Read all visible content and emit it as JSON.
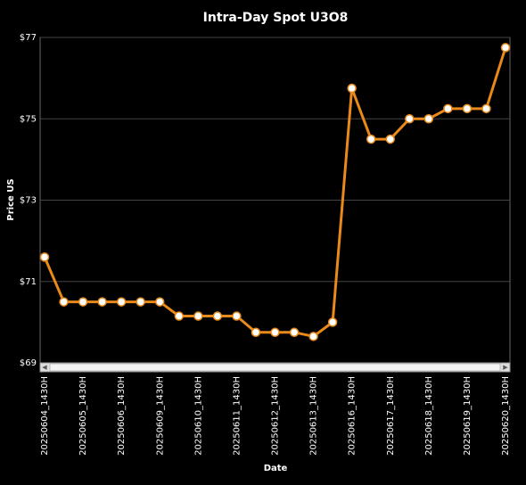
{
  "chart_data": {
    "type": "line",
    "title": "Intra-Day Spot U3O8",
    "x_label": "Date",
    "y_label": "Price US",
    "categories": [
      "20250604_1430H",
      null,
      "20250605_1430H",
      null,
      "20250606_1430H",
      null,
      "20250609_1430H",
      null,
      "20250610_1430H",
      null,
      "20250611_1430H",
      null,
      "20250612_1430H",
      null,
      "20250613_1430H",
      null,
      "20250616_1430H",
      null,
      "20250617_1430H",
      null,
      "20250618_1430H",
      null,
      "20250619_1430H",
      null,
      "20250620_1430H"
    ],
    "series": [
      {
        "name": "Price US",
        "color": "#e8891a",
        "values": [
          71.6,
          70.5,
          70.5,
          70.5,
          70.5,
          70.5,
          70.5,
          70.15,
          70.15,
          70.15,
          70.15,
          69.75,
          69.75,
          69.75,
          69.65,
          70.0,
          75.75,
          74.5,
          74.5,
          75.0,
          75.0,
          75.25,
          75.25,
          75.25,
          76.75
        ]
      }
    ],
    "ylim": [
      69,
      77
    ],
    "yticks": [
      {
        "value": 69,
        "label": "$69"
      },
      {
        "value": 71,
        "label": "$71"
      },
      {
        "value": 73,
        "label": "$73"
      },
      {
        "value": 75,
        "label": "$75"
      },
      {
        "value": 77,
        "label": "$77"
      }
    ],
    "grid": true
  }
}
